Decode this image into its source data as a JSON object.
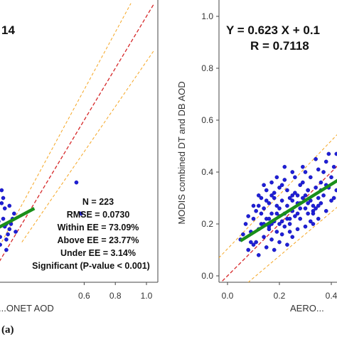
{
  "panel_label": "(a)",
  "chart_data": [
    {
      "type": "scatter",
      "xlabel": "...ONET AOD",
      "ylabel": "",
      "xlim": [
        -0.02,
        1.05
      ],
      "ylim": [
        -0.05,
        1.05
      ],
      "xticks": [
        "0.6",
        "0.8",
        "1.0"
      ],
      "title_fragment": "14",
      "stats": [
        "N = 223",
        "RMSE = 0.0730",
        "Within EE = 73.09%",
        "Above EE = 23.77%",
        "Under EE = 3.14%",
        "Significant (P-value < 0.001)"
      ],
      "fit_line": {
        "x": [
          0.0,
          0.28
        ],
        "y": [
          0.17,
          0.26
        ]
      },
      "one_to_one": {
        "x": [
          -0.02,
          1.05
        ],
        "y": [
          -0.02,
          1.05
        ]
      },
      "ee_upper": {
        "x": [
          -0.02,
          0.9
        ],
        "y": [
          0.03,
          1.05
        ]
      },
      "ee_lower": {
        "x": [
          0.2,
          1.05
        ],
        "y": [
          0.13,
          0.87
        ]
      },
      "points": {
        "x": [
          0.08,
          0.12,
          0.04,
          0.1,
          0.06,
          0.15,
          0.03,
          0.09,
          0.11,
          0.05,
          0.13,
          0.07,
          0.16,
          0.02,
          0.1,
          0.08,
          0.14,
          0.06,
          0.12,
          0.09,
          0.55,
          0.58,
          0.1,
          0.07,
          0.05
        ],
        "y": [
          0.22,
          0.18,
          0.25,
          0.2,
          0.15,
          0.24,
          0.19,
          0.26,
          0.16,
          0.21,
          0.2,
          0.28,
          0.17,
          0.23,
          0.14,
          0.3,
          0.22,
          0.12,
          0.27,
          0.19,
          0.36,
          0.24,
          0.1,
          0.33,
          0.28
        ]
      }
    },
    {
      "type": "scatter",
      "xlabel": "AERO...",
      "ylabel": "MODIS combined DT and DB AOD",
      "xlim": [
        -0.1,
        0.5
      ],
      "ylim": [
        -0.05,
        1.05
      ],
      "xticks": [
        "0.0",
        "0.2",
        "0.4"
      ],
      "yticks": [
        "0.0",
        "0.2",
        "0.4",
        "0.6",
        "0.8",
        "1.0"
      ],
      "equation": "Y = 0.623 X + 0.1",
      "r_text": "R = 0.7118",
      "fit_line": {
        "x": [
          0.05,
          0.5
        ],
        "y": [
          0.135,
          0.415
        ]
      },
      "one_to_one": {
        "x": [
          -0.02,
          0.5
        ],
        "y": [
          -0.02,
          0.5
        ]
      },
      "ee_upper": {
        "x": [
          -0.1,
          0.5
        ],
        "y": [
          -0.0,
          0.625
        ]
      },
      "ee_lower": {
        "x": [
          0.05,
          0.5
        ],
        "y": [
          -0.05,
          0.33
        ]
      },
      "points": {
        "x": [
          0.05,
          0.07,
          0.08,
          0.09,
          0.1,
          0.1,
          0.11,
          0.12,
          0.12,
          0.13,
          0.13,
          0.14,
          0.14,
          0.15,
          0.15,
          0.15,
          0.16,
          0.16,
          0.17,
          0.17,
          0.17,
          0.18,
          0.18,
          0.18,
          0.19,
          0.19,
          0.2,
          0.2,
          0.2,
          0.21,
          0.21,
          0.21,
          0.22,
          0.22,
          0.23,
          0.23,
          0.23,
          0.24,
          0.24,
          0.25,
          0.25,
          0.25,
          0.26,
          0.26,
          0.27,
          0.27,
          0.28,
          0.28,
          0.29,
          0.29,
          0.3,
          0.3,
          0.31,
          0.31,
          0.32,
          0.32,
          0.33,
          0.33,
          0.34,
          0.34,
          0.35,
          0.35,
          0.36,
          0.36,
          0.37,
          0.37,
          0.38,
          0.38,
          0.39,
          0.4,
          0.4,
          0.41,
          0.42,
          0.42,
          0.43,
          0.44,
          0.45,
          0.46,
          0.47,
          0.48,
          0.49,
          0.1,
          0.12,
          0.14,
          0.16,
          0.18,
          0.2,
          0.22,
          0.24,
          0.26,
          0.28,
          0.3,
          0.32,
          0.34,
          0.36,
          0.11,
          0.13,
          0.15,
          0.17,
          0.19,
          0.21,
          0.23,
          0.25,
          0.27,
          0.29,
          0.31,
          0.33,
          0.35,
          0.08,
          0.09,
          0.14,
          0.16,
          0.19,
          0.22,
          0.25,
          0.28,
          0.3,
          0.33,
          0.38,
          0.41,
          0.44,
          0.46,
          0.48,
          0.06,
          0.12,
          0.17,
          0.2,
          0.24,
          0.27,
          0.31,
          0.35,
          0.39,
          0.43
        ],
        "y": [
          0.14,
          0.2,
          0.1,
          0.17,
          0.22,
          0.12,
          0.25,
          0.18,
          0.08,
          0.3,
          0.2,
          0.15,
          0.26,
          0.22,
          0.11,
          0.33,
          0.19,
          0.28,
          0.24,
          0.14,
          0.36,
          0.21,
          0.3,
          0.1,
          0.17,
          0.38,
          0.26,
          0.13,
          0.34,
          0.21,
          0.29,
          0.16,
          0.24,
          0.42,
          0.27,
          0.12,
          0.33,
          0.2,
          0.3,
          0.25,
          0.15,
          0.4,
          0.23,
          0.32,
          0.28,
          0.18,
          0.35,
          0.22,
          0.3,
          0.42,
          0.26,
          0.19,
          0.33,
          0.24,
          0.29,
          0.38,
          0.27,
          0.2,
          0.34,
          0.45,
          0.3,
          0.22,
          0.36,
          0.28,
          0.4,
          0.31,
          0.25,
          0.44,
          0.34,
          0.38,
          0.29,
          0.42,
          0.33,
          0.47,
          0.36,
          0.41,
          0.39,
          0.45,
          0.37,
          0.43,
          0.48,
          0.27,
          0.31,
          0.35,
          0.18,
          0.32,
          0.2,
          0.37,
          0.17,
          0.38,
          0.28,
          0.31,
          0.21,
          0.26,
          0.33,
          0.13,
          0.24,
          0.29,
          0.31,
          0.24,
          0.35,
          0.22,
          0.29,
          0.24,
          0.36,
          0.33,
          0.25,
          0.41,
          0.23,
          0.13,
          0.2,
          0.22,
          0.27,
          0.19,
          0.31,
          0.26,
          0.4,
          0.24,
          0.35,
          0.3,
          0.4,
          0.5,
          0.42,
          0.16,
          0.27,
          0.2,
          0.23,
          0.22,
          0.31,
          0.28,
          0.27,
          0.47,
          0.36
        ]
      }
    }
  ]
}
